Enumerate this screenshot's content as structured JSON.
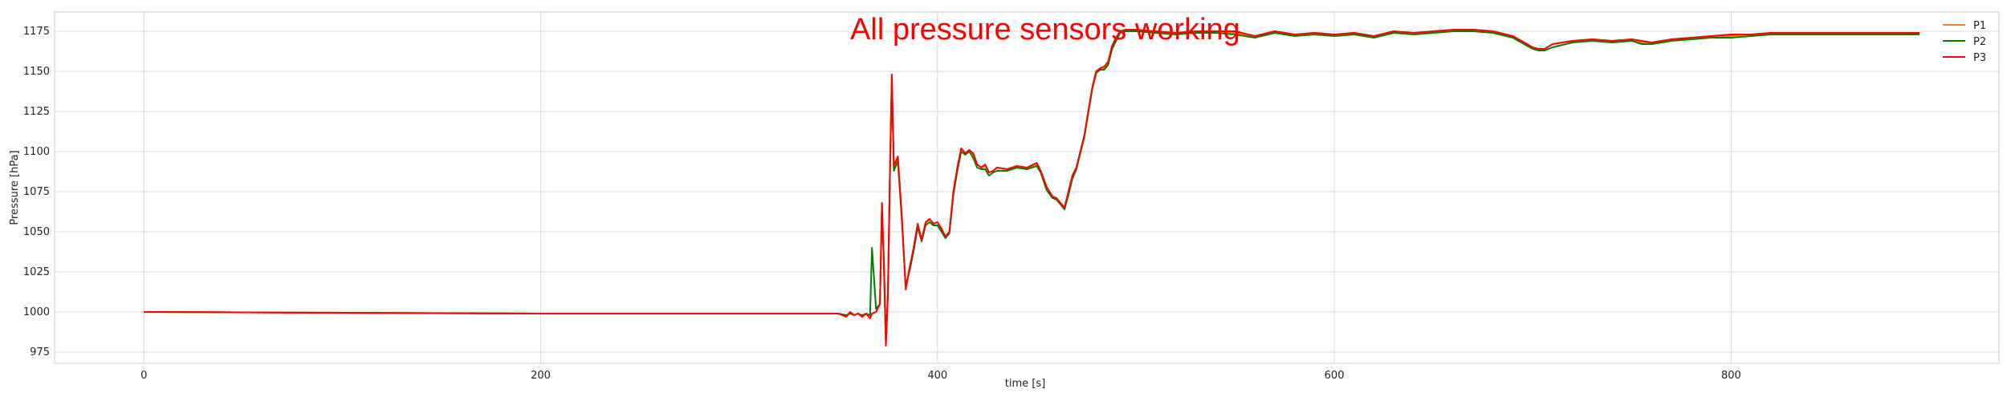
{
  "chart_data": {
    "type": "line",
    "title": "",
    "xlabel": "time [s]",
    "ylabel": "Pressure [hPa]",
    "xlim": [
      -45,
      935
    ],
    "ylim": [
      968,
      1187
    ],
    "xticks": [
      0,
      200,
      400,
      600,
      800
    ],
    "yticks": [
      975,
      1000,
      1025,
      1050,
      1075,
      1100,
      1125,
      1150,
      1175
    ],
    "grid": true,
    "legend": "top-right",
    "annotation": {
      "text": "All pressure sensors working",
      "x": 356,
      "y": 1170,
      "color": "#ff0000"
    },
    "colors": {
      "P1": "#ff7f0e",
      "P2": "#008000",
      "P3": "#ff0000",
      "grid": "#d9d9d9"
    },
    "series": [
      {
        "name": "P1",
        "x": [
          0,
          100,
          200,
          300,
          350,
          354,
          356,
          358,
          360,
          362,
          364,
          366,
          367,
          369,
          371,
          372,
          373,
          374,
          375,
          376,
          377,
          378,
          380,
          382,
          384,
          386,
          388,
          390,
          392,
          394,
          396,
          398,
          400,
          402,
          404,
          406,
          408,
          410,
          412,
          414,
          416,
          418,
          420,
          422,
          424,
          426,
          428,
          430,
          435,
          440,
          445,
          450,
          452,
          455,
          458,
          460,
          462,
          464,
          466,
          468,
          470,
          472,
          474,
          476,
          478,
          480,
          482,
          484,
          486,
          488,
          490,
          492,
          495,
          500,
          510,
          520,
          530,
          540,
          550,
          560,
          570,
          580,
          590,
          600,
          610,
          620,
          630,
          640,
          650,
          660,
          670,
          680,
          690,
          700,
          703,
          706,
          710,
          720,
          730,
          740,
          750,
          755,
          760,
          770,
          780,
          790,
          800,
          810,
          820,
          830,
          840,
          850,
          860,
          870,
          880,
          895
        ],
        "values": [
          1000,
          999.5,
          999,
          999,
          999,
          997,
          1000,
          998,
          999,
          997,
          999,
          998,
          999,
          1000,
          1005,
          1068,
          1030,
          980,
          1010,
          1085,
          1148,
          1090,
          1096,
          1060,
          1015,
          1028,
          1040,
          1055,
          1045,
          1055,
          1058,
          1055,
          1056,
          1052,
          1047,
          1050,
          1075,
          1090,
          1102,
          1099,
          1101,
          1098,
          1092,
          1090,
          1091,
          1087,
          1088,
          1090,
          1089,
          1091,
          1090,
          1092,
          1088,
          1078,
          1072,
          1071,
          1068,
          1065,
          1075,
          1085,
          1090,
          1100,
          1110,
          1125,
          1140,
          1150,
          1152,
          1152,
          1155,
          1165,
          1170,
          1175,
          1176,
          1175,
          1175,
          1174,
          1175,
          1175,
          1174,
          1172,
          1175,
          1173,
          1174,
          1173,
          1174,
          1172,
          1175,
          1174,
          1175,
          1176,
          1176,
          1175,
          1172,
          1165,
          1164,
          1164,
          1167,
          1169,
          1170,
          1169,
          1170,
          1168,
          1168,
          1170,
          1171,
          1172,
          1172,
          1173,
          1174,
          1174,
          1174,
          1174,
          1174,
          1174,
          1174,
          1174
        ]
      },
      {
        "name": "P2",
        "x": [
          0,
          100,
          200,
          300,
          350,
          354,
          356,
          358,
          360,
          362,
          364,
          366,
          367,
          369,
          371,
          372,
          373,
          374,
          375,
          376,
          377,
          378,
          380,
          382,
          384,
          386,
          388,
          390,
          392,
          394,
          396,
          398,
          400,
          402,
          404,
          406,
          408,
          410,
          412,
          414,
          416,
          418,
          420,
          422,
          424,
          426,
          428,
          430,
          435,
          440,
          445,
          450,
          452,
          455,
          458,
          460,
          462,
          464,
          466,
          468,
          470,
          472,
          474,
          476,
          478,
          480,
          482,
          484,
          486,
          488,
          490,
          492,
          495,
          500,
          510,
          520,
          530,
          540,
          550,
          560,
          570,
          580,
          590,
          600,
          610,
          620,
          630,
          640,
          650,
          660,
          670,
          680,
          690,
          700,
          703,
          706,
          710,
          720,
          730,
          740,
          750,
          755,
          760,
          770,
          780,
          790,
          800,
          810,
          820,
          830,
          840,
          850,
          860,
          870,
          880,
          895
        ],
        "values": [
          1000,
          999.5,
          999,
          999,
          999,
          998,
          999,
          998,
          999,
          998,
          999,
          998,
          1040,
          1002,
          1005,
          1066,
          1028,
          982,
          1012,
          1083,
          1147,
          1088,
          1094,
          1058,
          1016,
          1026,
          1038,
          1053,
          1044,
          1054,
          1056,
          1054,
          1054,
          1050,
          1046,
          1049,
          1073,
          1088,
          1100,
          1098,
          1100,
          1096,
          1090,
          1089,
          1089,
          1085,
          1087,
          1088,
          1088,
          1090,
          1089,
          1091,
          1087,
          1076,
          1071,
          1070,
          1067,
          1064,
          1073,
          1083,
          1089,
          1099,
          1109,
          1124,
          1139,
          1149,
          1151,
          1151,
          1154,
          1164,
          1169,
          1174,
          1175,
          1175,
          1174,
          1173,
          1174,
          1174,
          1173,
          1171,
          1174,
          1172,
          1173,
          1172,
          1173,
          1171,
          1174,
          1173,
          1174,
          1175,
          1175,
          1174,
          1171,
          1164,
          1163,
          1163,
          1165,
          1168,
          1169,
          1168,
          1169,
          1167,
          1167,
          1169,
          1170,
          1171,
          1171,
          1172,
          1173,
          1173,
          1173,
          1173,
          1173,
          1173,
          1173,
          1173
        ]
      },
      {
        "name": "P3",
        "x": [
          0,
          100,
          200,
          300,
          350,
          354,
          356,
          358,
          360,
          362,
          364,
          366,
          367,
          369,
          371,
          372,
          373,
          374,
          375,
          376,
          377,
          378,
          380,
          382,
          384,
          386,
          388,
          390,
          392,
          394,
          396,
          398,
          400,
          402,
          404,
          406,
          408,
          410,
          412,
          414,
          416,
          418,
          420,
          422,
          424,
          426,
          428,
          430,
          435,
          440,
          445,
          450,
          452,
          455,
          458,
          460,
          462,
          464,
          466,
          468,
          470,
          472,
          474,
          476,
          478,
          480,
          482,
          484,
          486,
          488,
          490,
          492,
          495,
          500,
          510,
          520,
          530,
          540,
          550,
          560,
          570,
          580,
          590,
          600,
          610,
          620,
          630,
          640,
          650,
          660,
          670,
          680,
          690,
          700,
          703,
          706,
          710,
          720,
          730,
          740,
          750,
          755,
          760,
          770,
          780,
          790,
          800,
          810,
          820,
          830,
          840,
          850,
          860,
          870,
          880,
          895
        ],
        "values": [
          1000,
          999.5,
          999,
          999,
          999,
          997,
          1000,
          998,
          999,
          997,
          999,
          996,
          999,
          1000,
          1005,
          1068,
          1030,
          979,
          1010,
          1086,
          1148,
          1091,
          1097,
          1060,
          1014,
          1028,
          1040,
          1055,
          1045,
          1056,
          1058,
          1055,
          1056,
          1052,
          1047,
          1050,
          1075,
          1090,
          1102,
          1099,
          1101,
          1099,
          1092,
          1090,
          1092,
          1087,
          1088,
          1090,
          1089,
          1091,
          1090,
          1093,
          1088,
          1078,
          1072,
          1071,
          1068,
          1065,
          1075,
          1085,
          1090,
          1100,
          1110,
          1125,
          1140,
          1150,
          1152,
          1153,
          1156,
          1166,
          1171,
          1175,
          1176,
          1176,
          1175,
          1174,
          1175,
          1175,
          1175,
          1172,
          1175,
          1173,
          1174,
          1173,
          1174,
          1172,
          1175,
          1174,
          1175,
          1176,
          1176,
          1175,
          1172,
          1165,
          1164,
          1164,
          1167,
          1169,
          1170,
          1169,
          1170,
          1169,
          1168,
          1170,
          1171,
          1172,
          1173,
          1173,
          1174,
          1174,
          1174,
          1174,
          1174,
          1174,
          1174,
          1174
        ]
      }
    ]
  }
}
